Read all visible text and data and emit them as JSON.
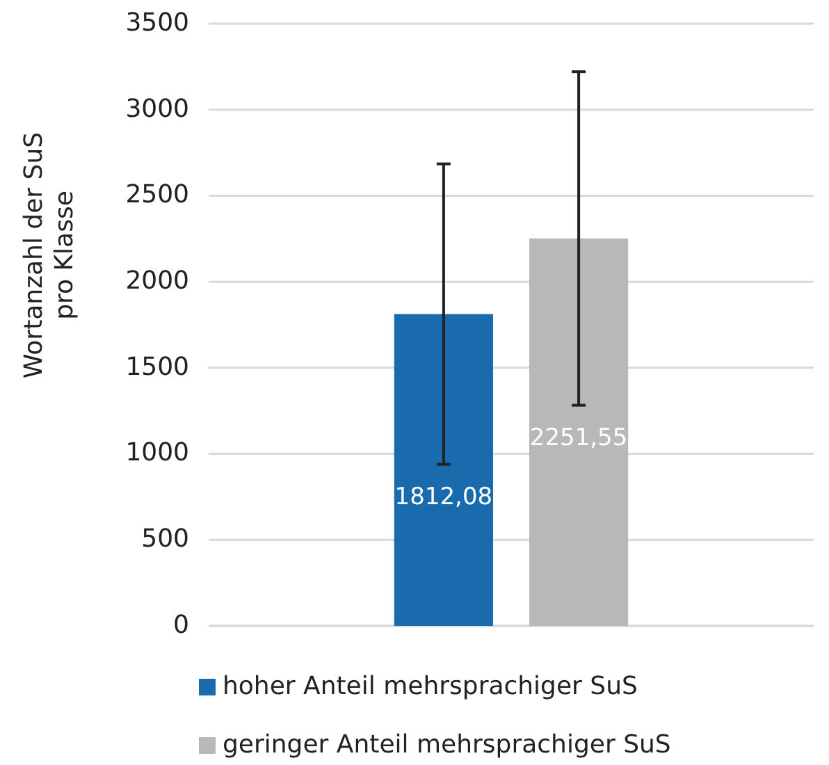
{
  "chart_data": {
    "type": "bar",
    "ylabel": "Wortanzahl der SuS pro Klasse",
    "categories": [
      null
    ],
    "series": [
      {
        "name": "hoher Anteil mehrsprachiger SuS",
        "color": "#1a6aae",
        "values": [
          1812.08
        ],
        "errors": [
          873
        ],
        "value_labels": [
          "1812,08"
        ]
      },
      {
        "name": "geringer Anteil mehrsprachiger SuS",
        "color": "#b8b8b8",
        "values": [
          2251.55
        ],
        "errors": [
          969
        ],
        "value_labels": [
          "2251,55"
        ]
      }
    ],
    "ylim": [
      0,
      3500
    ],
    "yticks": [
      0,
      500,
      1000,
      1500,
      2000,
      2500,
      3000,
      3500
    ],
    "grid": "y",
    "legend": "bottom"
  }
}
